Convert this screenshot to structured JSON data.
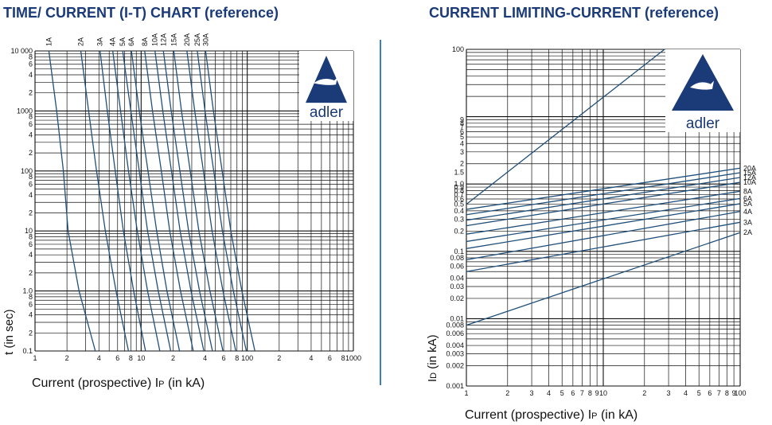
{
  "titles": {
    "left": "TIME/ CURRENT (I-T) CHART (reference)",
    "right": "CURRENT LIMITING-CURRENT (reference)"
  },
  "logo": {
    "text": "adler",
    "icon": "eagle-triangle-logo"
  },
  "colors": {
    "title": "#1a3a78",
    "divider": "#3a7fc4",
    "logo": "#1a3a78"
  },
  "chart_data": [
    {
      "type": "line",
      "xscale": "log",
      "yscale": "log",
      "xlim": [
        1,
        1000
      ],
      "ylim": [
        0.1,
        10000
      ],
      "grid": true,
      "xlabel_main": "Current (prospective) I",
      "xlabel_sub": "P",
      "xlabel_unit": " (in kA)",
      "ylabel": "t (in sec)",
      "xticks": [
        {
          "v": 1,
          "l": "1"
        },
        {
          "v": 2,
          "l": "2"
        },
        {
          "v": 4,
          "l": "4"
        },
        {
          "v": 6,
          "l": "6"
        },
        {
          "v": 8,
          "l": "8"
        },
        {
          "v": 10,
          "l": "10"
        },
        {
          "v": 20,
          "l": "2"
        },
        {
          "v": 40,
          "l": "4"
        },
        {
          "v": 60,
          "l": "6"
        },
        {
          "v": 80,
          "l": "8"
        },
        {
          "v": 100,
          "l": "100"
        },
        {
          "v": 200,
          "l": "2"
        },
        {
          "v": 400,
          "l": "4"
        },
        {
          "v": 600,
          "l": "6"
        },
        {
          "v": 800,
          "l": "8"
        },
        {
          "v": 1000,
          "l": "1000"
        }
      ],
      "yticks": [
        {
          "v": 0.1,
          "l": "0.1"
        },
        {
          "v": 0.2,
          "l": "2"
        },
        {
          "v": 0.4,
          "l": "4"
        },
        {
          "v": 0.6,
          "l": "6"
        },
        {
          "v": 0.8,
          "l": "8"
        },
        {
          "v": 1,
          "l": "1.0"
        },
        {
          "v": 2,
          "l": "2"
        },
        {
          "v": 4,
          "l": "4"
        },
        {
          "v": 6,
          "l": "6"
        },
        {
          "v": 8,
          "l": "8"
        },
        {
          "v": 10,
          "l": "10"
        },
        {
          "v": 20,
          "l": "2"
        },
        {
          "v": 40,
          "l": "4"
        },
        {
          "v": 60,
          "l": "6"
        },
        {
          "v": 80,
          "l": "8"
        },
        {
          "v": 100,
          "l": "100"
        },
        {
          "v": 200,
          "l": "2"
        },
        {
          "v": 400,
          "l": "4"
        },
        {
          "v": 600,
          "l": "6"
        },
        {
          "v": 800,
          "l": "8"
        },
        {
          "v": 1000,
          "l": "1000"
        },
        {
          "v": 2000,
          "l": "2"
        },
        {
          "v": 4000,
          "l": "4"
        },
        {
          "v": 6000,
          "l": "6"
        },
        {
          "v": 8000,
          "l": "8"
        },
        {
          "v": 10000,
          "l": "10 000"
        }
      ],
      "series": [
        {
          "name": "1A",
          "points": [
            [
              1.35,
              10000
            ],
            [
              1.6,
              1000
            ],
            [
              1.85,
              100
            ],
            [
              2.05,
              10
            ],
            [
              2.6,
              1
            ],
            [
              3.7,
              0.1
            ]
          ]
        },
        {
          "name": "2A",
          "points": [
            [
              2.7,
              10000
            ],
            [
              3.2,
              1000
            ],
            [
              3.8,
              100
            ],
            [
              4.6,
              10
            ],
            [
              5.8,
              1
            ],
            [
              7.6,
              0.1
            ]
          ]
        },
        {
          "name": "3A",
          "points": [
            [
              4.1,
              10000
            ],
            [
              4.8,
              1000
            ],
            [
              5.7,
              100
            ],
            [
              6.8,
              10
            ],
            [
              8.5,
              1
            ],
            [
              11,
              0.1
            ]
          ]
        },
        {
          "name": "4A",
          "points": [
            [
              5.4,
              10000
            ],
            [
              6.4,
              1000
            ],
            [
              7.6,
              100
            ],
            [
              9.2,
              10
            ],
            [
              11.5,
              1
            ],
            [
              15,
              0.1
            ]
          ]
        },
        {
          "name": "5A",
          "points": [
            [
              6.7,
              10000
            ],
            [
              8,
              1000
            ],
            [
              9.6,
              100
            ],
            [
              11.5,
              10
            ],
            [
              14.5,
              1
            ],
            [
              19,
              0.1
            ]
          ]
        },
        {
          "name": "6A",
          "points": [
            [
              8.1,
              10000
            ],
            [
              9.6,
              1000
            ],
            [
              11.6,
              100
            ],
            [
              14,
              10
            ],
            [
              17.5,
              1
            ],
            [
              23,
              0.1
            ]
          ]
        },
        {
          "name": "8A",
          "points": [
            [
              10.8,
              10000
            ],
            [
              12.8,
              1000
            ],
            [
              15.5,
              100
            ],
            [
              18.6,
              10
            ],
            [
              23.5,
              1
            ],
            [
              31,
              0.1
            ]
          ]
        },
        {
          "name": "10A",
          "points": [
            [
              13.5,
              10000
            ],
            [
              16,
              1000
            ],
            [
              19.3,
              100
            ],
            [
              23.3,
              10
            ],
            [
              29.5,
              1
            ],
            [
              39,
              0.1
            ]
          ]
        },
        {
          "name": "12A",
          "points": [
            [
              16.2,
              10000
            ],
            [
              19.2,
              1000
            ],
            [
              23.2,
              100
            ],
            [
              28,
              10
            ],
            [
              35.5,
              1
            ],
            [
              47,
              0.1
            ]
          ]
        },
        {
          "name": "15A",
          "points": [
            [
              20.3,
              10000
            ],
            [
              24,
              1000
            ],
            [
              29,
              100
            ],
            [
              35,
              10
            ],
            [
              44.5,
              1
            ],
            [
              59,
              0.1
            ]
          ]
        },
        {
          "name": "20A",
          "points": [
            [
              27,
              10000
            ],
            [
              32,
              1000
            ],
            [
              38.6,
              100
            ],
            [
              46.6,
              10
            ],
            [
              59,
              1
            ],
            [
              78,
              0.1
            ]
          ]
        },
        {
          "name": "25A",
          "points": [
            [
              33.8,
              10000
            ],
            [
              40,
              1000
            ],
            [
              48.3,
              100
            ],
            [
              58.3,
              10
            ],
            [
              74,
              1
            ],
            [
              98,
              0.1
            ]
          ]
        },
        {
          "name": "30A",
          "points": [
            [
              40.5,
              10000
            ],
            [
              48,
              1000
            ],
            [
              58,
              100
            ],
            [
              70,
              10
            ],
            [
              89,
              1
            ],
            [
              118,
              0.1
            ]
          ]
        }
      ]
    },
    {
      "type": "line",
      "xscale": "log",
      "yscale": "log",
      "xlim": [
        1,
        100
      ],
      "ylim": [
        0.001,
        100
      ],
      "grid": true,
      "xlabel_main": "Current (prospective) I",
      "xlabel_sub": "P",
      "xlabel_unit": " (in kA)",
      "ylabel_main": "I",
      "ylabel_sub": "D",
      "ylabel_unit": " (in kA)",
      "xticks": [
        {
          "v": 1,
          "l": "1"
        },
        {
          "v": 2,
          "l": "2"
        },
        {
          "v": 3,
          "l": "3"
        },
        {
          "v": 4,
          "l": "4"
        },
        {
          "v": 5,
          "l": "5"
        },
        {
          "v": 6,
          "l": "6"
        },
        {
          "v": 7,
          "l": "7"
        },
        {
          "v": 8,
          "l": "8"
        },
        {
          "v": 9,
          "l": "9"
        },
        {
          "v": 10,
          "l": "10"
        },
        {
          "v": 20,
          "l": "2"
        },
        {
          "v": 30,
          "l": "3"
        },
        {
          "v": 40,
          "l": "4"
        },
        {
          "v": 50,
          "l": "5"
        },
        {
          "v": 60,
          "l": "6"
        },
        {
          "v": 70,
          "l": "7"
        },
        {
          "v": 80,
          "l": "8"
        },
        {
          "v": 90,
          "l": "9"
        },
        {
          "v": 100,
          "l": "100"
        }
      ],
      "yticks": [
        {
          "v": 0.001,
          "l": "0.001"
        },
        {
          "v": 0.002,
          "l": "0.002"
        },
        {
          "v": 0.003,
          "l": "0.003"
        },
        {
          "v": 0.004,
          "l": "0.004"
        },
        {
          "v": 0.006,
          "l": "0.006"
        },
        {
          "v": 0.008,
          "l": "0.008"
        },
        {
          "v": 0.01,
          "l": "0.01"
        },
        {
          "v": 0.02,
          "l": "0.02"
        },
        {
          "v": 0.03,
          "l": "0.03"
        },
        {
          "v": 0.04,
          "l": "0.04"
        },
        {
          "v": 0.06,
          "l": "0.06"
        },
        {
          "v": 0.08,
          "l": "0.08"
        },
        {
          "v": 0.1,
          "l": "0.1"
        },
        {
          "v": 0.2,
          "l": "0.2"
        },
        {
          "v": 0.3,
          "l": "0.3"
        },
        {
          "v": 0.4,
          "l": "0.4"
        },
        {
          "v": 0.5,
          "l": "0.5"
        },
        {
          "v": 0.6,
          "l": "0.6"
        },
        {
          "v": 0.7,
          "l": "0.7"
        },
        {
          "v": 0.8,
          "l": "0.8"
        },
        {
          "v": 0.9,
          "l": "0.9"
        },
        {
          "v": 1,
          "l": "1.0"
        },
        {
          "v": 1.5,
          "l": "1.5"
        },
        {
          "v": 2,
          "l": "2"
        },
        {
          "v": 3,
          "l": "3"
        },
        {
          "v": 4,
          "l": "4"
        },
        {
          "v": 5,
          "l": "5"
        },
        {
          "v": 6,
          "l": "6"
        },
        {
          "v": 7,
          "l": "7"
        },
        {
          "v": 8,
          "l": "8"
        },
        {
          "v": 9,
          "l": "9"
        },
        {
          "v": 100,
          "l": "100"
        }
      ],
      "reference_line": {
        "points": [
          [
            1,
            0.5
          ],
          [
            28,
            100
          ]
        ]
      },
      "series": [
        {
          "name": "20A",
          "points": [
            [
              1,
              0.42
            ],
            [
              100,
              1.72
            ]
          ]
        },
        {
          "name": "15A",
          "points": [
            [
              1,
              0.35
            ],
            [
              100,
              1.47
            ]
          ]
        },
        {
          "name": "12A",
          "points": [
            [
              1,
              0.29
            ],
            [
              100,
              1.25
            ]
          ]
        },
        {
          "name": "10A",
          "points": [
            [
              1,
              0.24
            ],
            [
              100,
              1.06
            ]
          ]
        },
        {
          "name": "8A",
          "points": [
            [
              1,
              0.18
            ],
            [
              100,
              0.78
            ]
          ]
        },
        {
          "name": "6A",
          "points": [
            [
              1,
              0.14
            ],
            [
              100,
              0.61
            ]
          ]
        },
        {
          "name": "5A",
          "points": [
            [
              1,
              0.11
            ],
            [
              100,
              0.51
            ]
          ]
        },
        {
          "name": "4A",
          "points": [
            [
              1,
              0.075
            ],
            [
              100,
              0.39
            ]
          ]
        },
        {
          "name": "3A",
          "points": [
            [
              1,
              0.05
            ],
            [
              100,
              0.27
            ]
          ]
        },
        {
          "name": "2A",
          "points": [
            [
              1,
              0.008
            ],
            [
              100,
              0.19
            ]
          ]
        }
      ]
    }
  ]
}
